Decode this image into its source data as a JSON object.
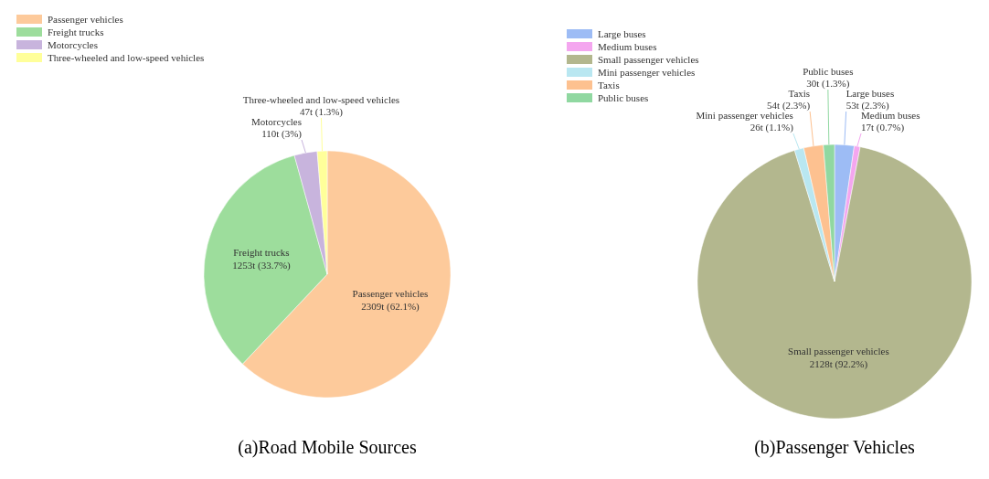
{
  "chart_data": [
    {
      "type": "pie",
      "title": "(a)Road Mobile Sources",
      "categories": [
        "Passenger vehicles",
        "Freight trucks",
        "Motorcycles",
        "Three-wheeled and low-speed vehicles"
      ],
      "values": [
        62.1,
        33.7,
        3,
        1.3
      ],
      "value_labels": [
        "2309t (62.1%)",
        "1253t (33.7%)",
        "110t (3%)",
        "47t (1.3%)"
      ],
      "colors": [
        "#fdca9b",
        "#9ddd9c",
        "#c8b4dd",
        "#ffff9a"
      ],
      "legend": "top left"
    },
    {
      "type": "pie",
      "title": "(b)Passenger Vehicles",
      "categories": [
        "Large buses",
        "Medium buses",
        "Small passenger vehicles",
        "Mini passenger vehicles",
        "Taxis",
        "Public buses"
      ],
      "values": [
        2.3,
        0.7,
        92.2,
        1.1,
        2.3,
        1.3
      ],
      "value_labels": [
        "53t (2.3%)",
        "17t (0.7%)",
        "2128t (92.2%)",
        "26t (1.1%)",
        "54t (2.3%)",
        "30t (1.3%)"
      ],
      "colors": [
        "#9dbcf5",
        "#f4a6ef",
        "#b3b78e",
        "#b9e7f1",
        "#fdc190",
        "#90d8a1"
      ],
      "legend": "top left"
    }
  ]
}
